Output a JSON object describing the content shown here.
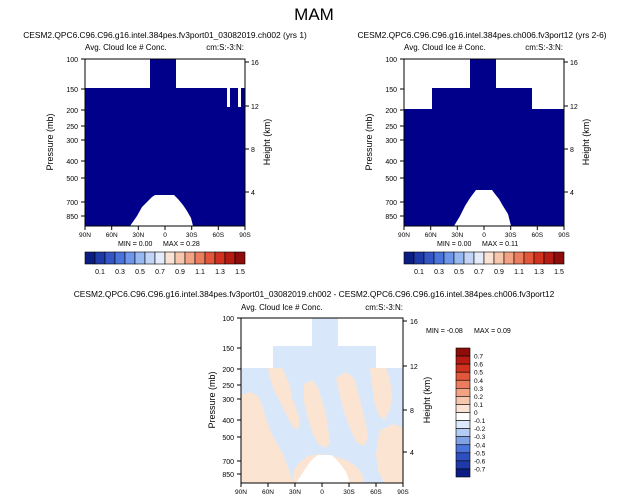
{
  "page_title": "MAM",
  "chart_data": [
    {
      "type": "heatmap",
      "title": "CESM2.QPC6.C96.C96.g16.intel.384pes.fv3port01_03082019.ch002 (yrs 1)",
      "subtitle_left": "Avg. Cloud Ice # Conc.",
      "subtitle_right": "cm:S:-3:N:",
      "xlabel": "",
      "ylabel": "Pressure (mb)",
      "ylabel_right": "Height (km)",
      "x_ticks": [
        "90N",
        "60N",
        "30N",
        "0",
        "30S",
        "60S",
        "90S"
      ],
      "y_ticks": [
        "100",
        "150",
        "200",
        "250",
        "300",
        "400",
        "500",
        "700",
        "850"
      ],
      "y_ticks_right": [
        "16",
        "12",
        "8",
        "4"
      ],
      "min_label": "MIN =  0.00",
      "max_label": "MAX =  0.28"
    },
    {
      "type": "heatmap",
      "title": "CESM2.QPC6.C96.C96.g16.intel.384pes.ch006.fv3port12 (yrs 2-6)",
      "subtitle_left": "Avg. Cloud Ice # Conc.",
      "subtitle_right": "cm:S:-3:N:",
      "xlabel": "",
      "ylabel": "Pressure (mb)",
      "ylabel_right": "Height (km)",
      "x_ticks": [
        "90N",
        "60N",
        "30N",
        "0",
        "30S",
        "60S",
        "90S"
      ],
      "y_ticks": [
        "100",
        "150",
        "200",
        "250",
        "300",
        "400",
        "500",
        "700",
        "850"
      ],
      "y_ticks_right": [
        "16",
        "12",
        "8",
        "4"
      ],
      "min_label": "MIN =  0.00",
      "max_label": "MAX =  0.11"
    },
    {
      "type": "heatmap",
      "title": "CESM2.QPC6.C96.C96.g16.intel.384pes.fv3port01_03082019.ch002 - CESM2.QPC6.C96.C96.g16.intel.384pes.ch006.fv3port12",
      "subtitle_left": "Avg. Cloud Ice # Conc.",
      "subtitle_right": "cm:S:-3:N:",
      "xlabel": "",
      "ylabel": "Pressure (mb)",
      "ylabel_right": "Height (km)",
      "x_ticks": [
        "90N",
        "60N",
        "30N",
        "0",
        "30S",
        "60S",
        "90S"
      ],
      "y_ticks": [
        "100",
        "150",
        "200",
        "250",
        "300",
        "400",
        "500",
        "700",
        "850"
      ],
      "y_ticks_right": [
        "16",
        "12",
        "8",
        "4"
      ],
      "min_label": "MIN = -0.08",
      "max_label": "MAX =  0.09"
    }
  ],
  "colorbar_main": {
    "labels": [
      "0.1",
      "0.3",
      "0.5",
      "0.7",
      "0.9",
      "1.1",
      "1.3",
      "1.5"
    ],
    "colors": [
      "#0b1c82",
      "#1e3aa8",
      "#3356c4",
      "#4a73db",
      "#6e96ea",
      "#98b8f2",
      "#c3d5f7",
      "#e4ecfb",
      "#fbe3d3",
      "#f7c7ad",
      "#f2a384",
      "#eb7c5d",
      "#e2563a",
      "#d13220",
      "#b51b12",
      "#8e0c0a"
    ]
  },
  "colorbar_diff": {
    "labels": [
      "0.7",
      "0.6",
      "0.5",
      "0.4",
      "0.3",
      "0.2",
      "0.1",
      "0",
      "-0.1",
      "-0.2",
      "-0.3",
      "-0.4",
      "-0.5",
      "-0.6",
      "-0.7"
    ],
    "colors": [
      "#8e0c0a",
      "#b51b12",
      "#d13220",
      "#e2563a",
      "#eb7c5d",
      "#f2a384",
      "#f7c7ad",
      "#fbe3d3",
      "#ffffff",
      "#dbe9fa",
      "#b2ccf3",
      "#7fa2e6",
      "#4a73db",
      "#2f4fc0",
      "#1e3aa8",
      "#0b1c82"
    ]
  },
  "fill_colors": {
    "navy": "#00008b",
    "light_blue": "#d8e8fa",
    "peach": "#fce4d2"
  }
}
